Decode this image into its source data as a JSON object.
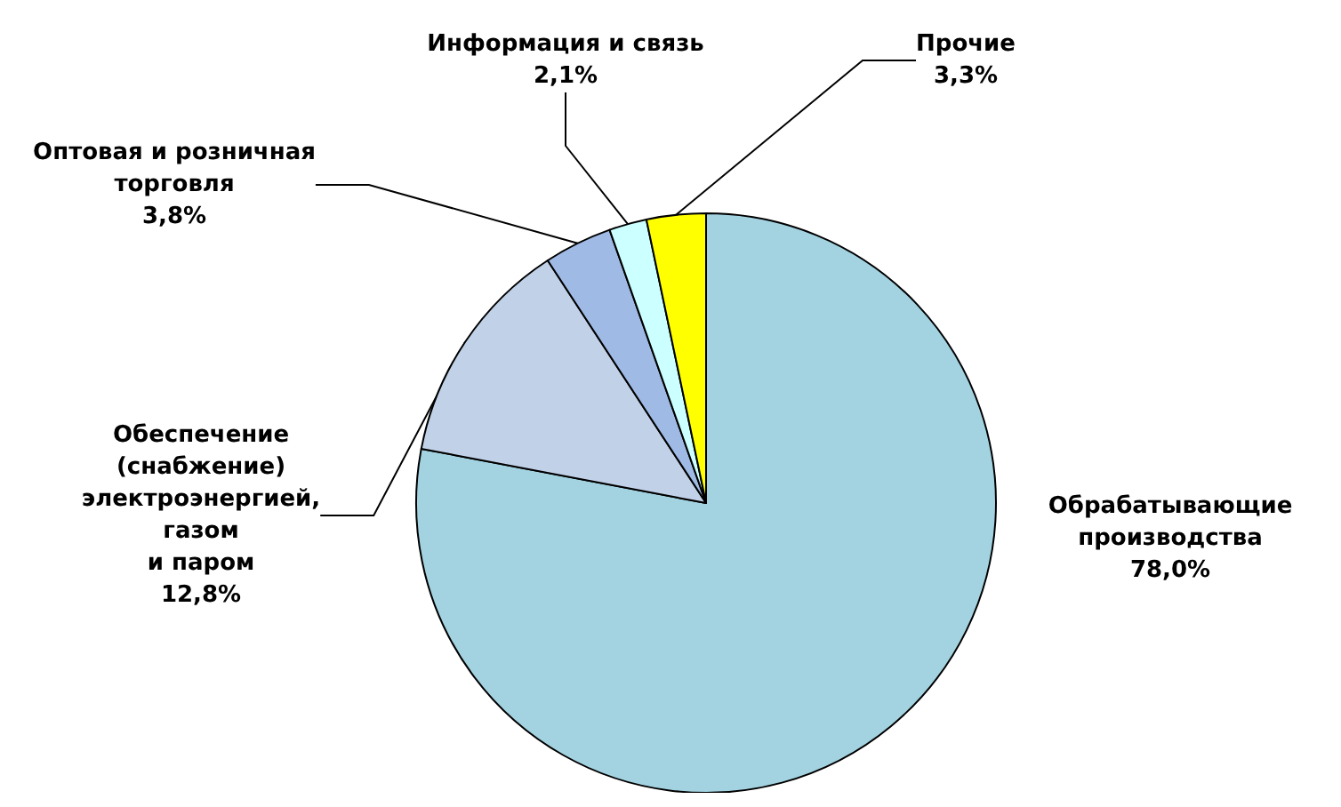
{
  "chart_data": {
    "type": "pie",
    "categories": [
      "Обрабатывающие\nпроизводства",
      "Обеспечение\n(снабжение)\nэлектроэнергией,\nгазом\nи паром",
      "Оптовая и розничная\nторговля",
      "Информация и связь",
      "Прочие"
    ],
    "values": [
      78.0,
      12.8,
      3.8,
      2.1,
      3.3
    ],
    "colors": [
      "#a3d3e1",
      "#c1d1e8",
      "#9fbae4",
      "#ccffff",
      "#ffff00"
    ],
    "value_labels": [
      "78,0%",
      "12,8%",
      "3,8%",
      "2,1%",
      "3,3%"
    ],
    "legend": false
  }
}
